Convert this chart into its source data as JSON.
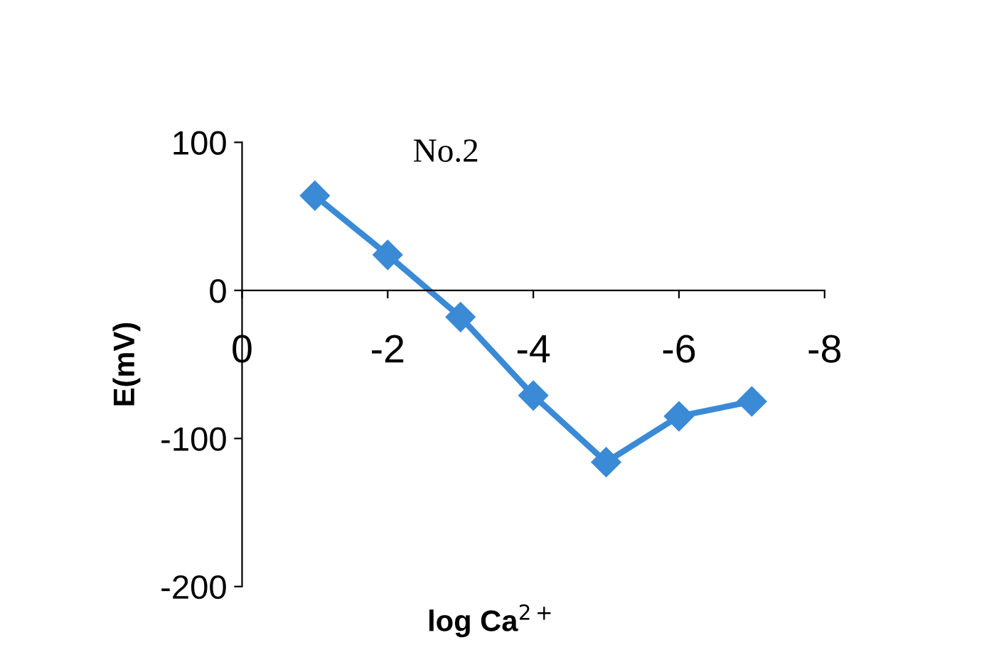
{
  "chart_data": {
    "type": "line",
    "title": "No.2",
    "xlabel": "log Ca$^{2+}$",
    "ylabel": "E(mV)",
    "x": [
      -1,
      -2,
      -3,
      -4,
      -5,
      -6,
      -7
    ],
    "series": [
      {
        "color": "#3a8ad6",
        "values": [
          64,
          24,
          -18,
          -71,
          -116,
          -85,
          -75
        ]
      }
    ],
    "xlim": [
      0,
      -8
    ],
    "ylim": [
      -200,
      100
    ],
    "xticks": [
      0,
      -2,
      -4,
      -6,
      -8
    ],
    "yticks": [
      100,
      0,
      -100,
      -200
    ],
    "marker": "diamond",
    "line_style": "solid",
    "grid": false,
    "legend": false
  }
}
